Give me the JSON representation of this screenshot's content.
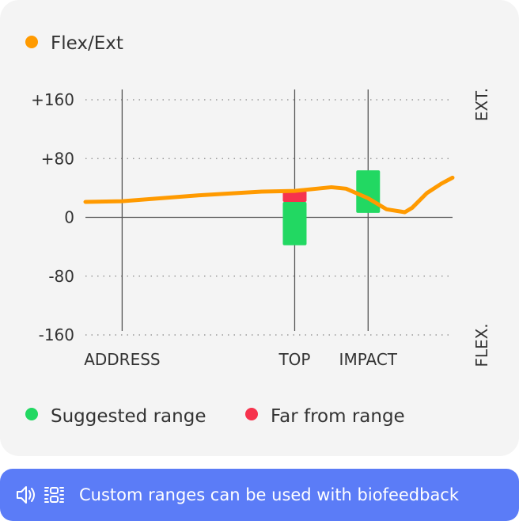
{
  "chart_data": {
    "type": "line",
    "series": [
      {
        "name": "Flex/Ext",
        "color": "#ff9a00",
        "x": [
          0,
          10,
          31,
          48,
          57,
          63,
          67,
          71,
          77,
          82,
          87,
          89,
          93,
          97,
          100
        ],
        "values": [
          21,
          22,
          30,
          35,
          36,
          39,
          41,
          39,
          26,
          11,
          7,
          13,
          33,
          46,
          54
        ]
      }
    ],
    "xlim": [
      0,
      100
    ],
    "ylim": [
      -160,
      160
    ],
    "yticks": [
      {
        "value": -160,
        "label": "-160"
      },
      -80,
      0,
      {
        "value": 80,
        "label": "+80"
      },
      {
        "value": 160,
        "label": "+160"
      }
    ],
    "events": [
      {
        "label": "ADDRESS",
        "x": 10
      },
      {
        "label": "TOP",
        "x": 57
      },
      {
        "label": "IMPACT",
        "x": 77
      }
    ],
    "ranges": [
      {
        "event": 1,
        "low": -38,
        "high": 21,
        "far_low": 21,
        "far_high": 36
      },
      {
        "event": 2,
        "low": 6,
        "high": 64
      }
    ],
    "range_legend": [
      {
        "name": "Suggested range",
        "color": "#22d862"
      },
      {
        "name": "Far from range",
        "color": "#f6334d"
      }
    ],
    "top_label": "EXT.",
    "bottom_label": "FLEX."
  },
  "banner": {
    "text": "Custom ranges can be used with biofeedback"
  }
}
